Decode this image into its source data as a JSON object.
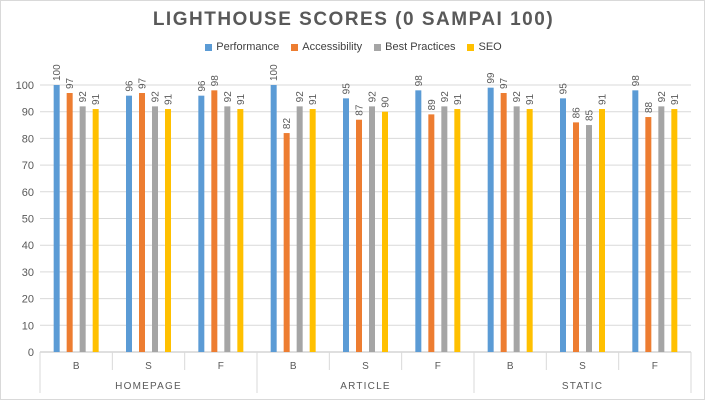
{
  "chart_data": {
    "type": "bar",
    "title": "LIGHTHOUSE SCORES (0 SAMPAI 100)",
    "xlabel": "",
    "ylabel": "",
    "ylim": [
      0,
      100
    ],
    "yticks": [
      0,
      10,
      20,
      30,
      40,
      50,
      60,
      70,
      80,
      90,
      100
    ],
    "grid": true,
    "legend_position": "top",
    "groups": [
      {
        "name": "HOMEPAGE",
        "categories": [
          "B",
          "S",
          "F"
        ]
      },
      {
        "name": "ARTICLE",
        "categories": [
          "B",
          "S",
          "F"
        ]
      },
      {
        "name": "STATIC",
        "categories": [
          "B",
          "S",
          "F"
        ]
      }
    ],
    "series": [
      {
        "name": "Performance",
        "color": "#5b9bd5",
        "values": [
          100,
          96,
          96,
          100,
          95,
          98,
          99,
          95,
          98
        ]
      },
      {
        "name": "Accessibility",
        "color": "#ed7d31",
        "values": [
          97,
          97,
          98,
          82,
          87,
          89,
          97,
          86,
          88
        ]
      },
      {
        "name": "Best Practices",
        "color": "#a5a5a5",
        "values": [
          92,
          92,
          92,
          92,
          92,
          92,
          92,
          85,
          92
        ]
      },
      {
        "name": "SEO",
        "color": "#ffc000",
        "values": [
          91,
          91,
          91,
          91,
          90,
          91,
          91,
          91,
          91
        ]
      }
    ]
  }
}
